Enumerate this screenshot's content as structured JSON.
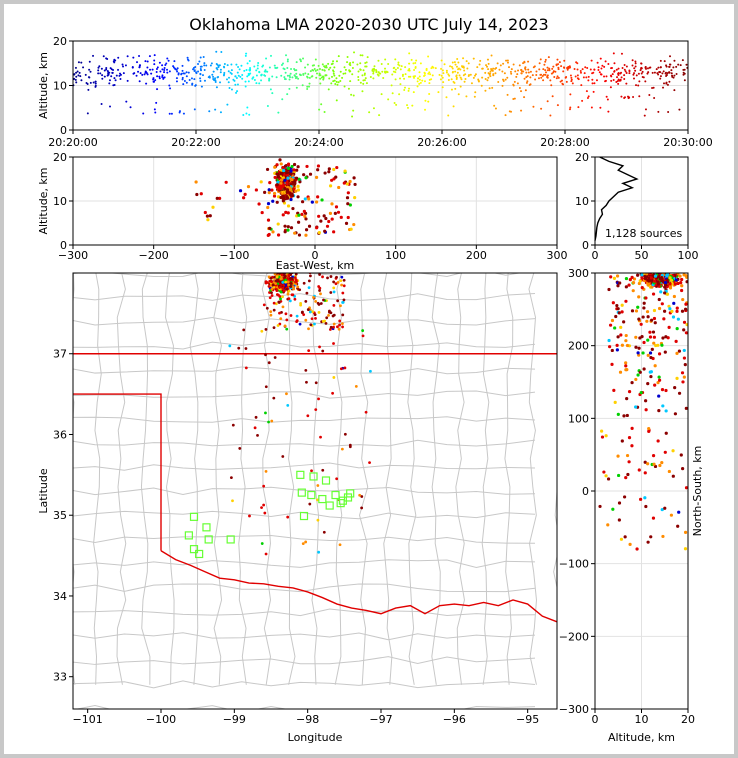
{
  "title": "Oklahoma LMA 2020-2030 UTC July 14, 2023",
  "chart_data": [
    {
      "type": "scatter",
      "panel": "time-altitude",
      "xlabel": "",
      "ylabel": "Altitude, km",
      "xlim": [
        "20:20:00",
        "20:30:00"
      ],
      "ylim": [
        0,
        20
      ],
      "xticks": [
        "20:20:00",
        "20:22:00",
        "20:24:00",
        "20:26:00",
        "20:28:00",
        "20:30:00"
      ],
      "yticks": [
        "0",
        "10",
        "20"
      ],
      "grid": true,
      "color_by": "time",
      "colormap": [
        "#00008b",
        "#0000ff",
        "#00ffff",
        "#7fff00",
        "#ffff00",
        "#ff8c00",
        "#ff0000",
        "#800000"
      ]
    },
    {
      "type": "scatter",
      "panel": "east-west-altitude",
      "xlabel": "East-West, km",
      "ylabel": "Altitude, km",
      "xlim": [
        -300,
        300
      ],
      "ylim": [
        0,
        20
      ],
      "xticks": [
        "−300",
        "−200",
        "−100",
        "0",
        "100",
        "200",
        "300"
      ],
      "yticks": [
        "0",
        "10",
        "20"
      ],
      "grid": true
    },
    {
      "type": "line",
      "panel": "altitude-histogram",
      "xlim": [
        0,
        100
      ],
      "ylim": [
        0,
        20
      ],
      "xticks": [
        "0",
        "50",
        "100"
      ],
      "yticks": [
        "0",
        "10",
        "20"
      ],
      "annotation": "1,128 sources",
      "profile": [
        [
          0,
          1
        ],
        [
          1,
          2
        ],
        [
          2,
          4
        ],
        [
          3,
          5
        ],
        [
          5,
          6
        ],
        [
          8,
          7
        ],
        [
          7,
          8
        ],
        [
          12,
          9
        ],
        [
          15,
          10
        ],
        [
          20,
          11
        ],
        [
          25,
          12
        ],
        [
          40,
          13
        ],
        [
          30,
          14
        ],
        [
          45,
          15
        ],
        [
          35,
          16
        ],
        [
          25,
          17
        ],
        [
          30,
          18
        ],
        [
          15,
          19
        ],
        [
          5,
          20
        ]
      ]
    },
    {
      "type": "scatter",
      "panel": "plan-view-map",
      "xlabel": "Longitude",
      "ylabel": "Latitude",
      "xlim": [
        -101.2,
        -94.6
      ],
      "ylim": [
        32.6,
        38
      ],
      "xticks": [
        "−101",
        "−100",
        "−99",
        "−98",
        "−97",
        "−96",
        "−95"
      ],
      "yticks": [
        "33",
        "34",
        "35",
        "36",
        "37"
      ],
      "grid": false,
      "stations": [
        [
          -99.55,
          34.98
        ],
        [
          -99.38,
          34.85
        ],
        [
          -99.62,
          34.75
        ],
        [
          -99.35,
          34.7
        ],
        [
          -99.55,
          34.58
        ],
        [
          -99.48,
          34.52
        ],
        [
          -99.05,
          34.7
        ],
        [
          -98.1,
          35.5
        ],
        [
          -97.92,
          35.48
        ],
        [
          -97.75,
          35.43
        ],
        [
          -98.08,
          35.28
        ],
        [
          -97.95,
          35.25
        ],
        [
          -97.8,
          35.2
        ],
        [
          -97.62,
          35.25
        ],
        [
          -97.45,
          35.22
        ],
        [
          -97.55,
          35.15
        ],
        [
          -97.7,
          35.12
        ],
        [
          -97.52,
          35.18
        ],
        [
          -98.05,
          34.99
        ],
        [
          -97.42,
          35.27
        ]
      ]
    },
    {
      "type": "scatter",
      "panel": "altitude-north-south",
      "xlabel": "Altitude, km",
      "ylabel": "North-South, km",
      "xlim": [
        0,
        20
      ],
      "ylim": [
        -300,
        300
      ],
      "xticks": [
        "0",
        "10",
        "20"
      ],
      "yticks": [
        "−300",
        "−200",
        "−100",
        "0",
        "100",
        "200",
        "300"
      ],
      "grid": true
    }
  ]
}
